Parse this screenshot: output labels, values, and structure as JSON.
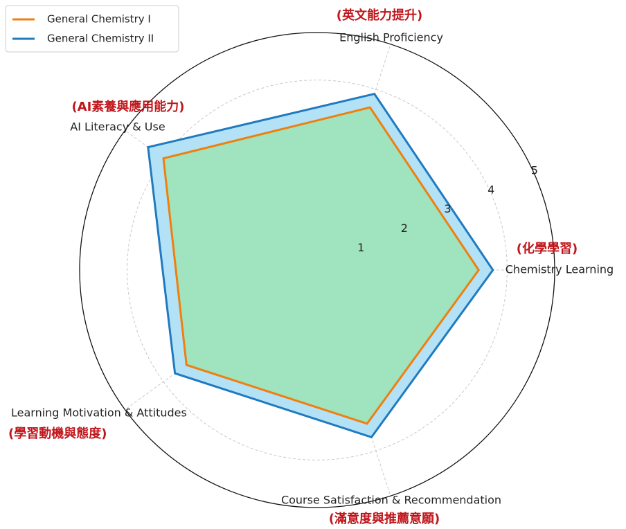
{
  "chart_data": {
    "type": "radar",
    "categories": [
      "Chemistry Learning",
      "English Proficiency",
      "AI Literacy & Use",
      "Learning Motivation & Attitudes",
      "Course Satisfaction & Recommendation"
    ],
    "categories_zh": [
      "(化學學習)",
      "(英文能力提升)",
      "(AI素養與應用能力)",
      "(學習動機與態度)",
      "(滿意度與推薦意願)"
    ],
    "series": [
      {
        "name": "General Chemistry I",
        "color": "#f07f0e",
        "fill": "#9fe3bf",
        "values": [
          3.4,
          3.6,
          4.0,
          3.4,
          3.4
        ]
      },
      {
        "name": "General Chemistry II",
        "color": "#1f7ac0",
        "fill": "#b3e1f5",
        "values": [
          3.7,
          3.9,
          4.4,
          3.7,
          3.7
        ]
      }
    ],
    "rlim": [
      0,
      5
    ],
    "rticks": [
      1,
      2,
      3,
      4,
      5
    ],
    "grid": true,
    "legend": "upper left"
  }
}
